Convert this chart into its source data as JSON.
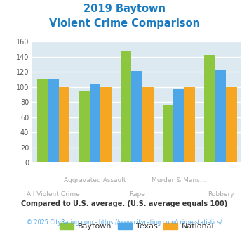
{
  "title_line1": "2019 Baytown",
  "title_line2": "Violent Crime Comparison",
  "title_color": "#1a7abf",
  "categories": [
    "All Violent Crime",
    "Aggravated Assault",
    "Rape",
    "Murder & Mans...",
    "Robbery"
  ],
  "baytown": [
    110,
    95,
    148,
    76,
    143
  ],
  "texas": [
    110,
    104,
    121,
    97,
    123
  ],
  "national": [
    100,
    100,
    100,
    100,
    100
  ],
  "baytown_color": "#8dc63f",
  "texas_color": "#4da6e8",
  "national_color": "#f5a623",
  "ylim": [
    0,
    160
  ],
  "yticks": [
    0,
    20,
    40,
    60,
    80,
    100,
    120,
    140,
    160
  ],
  "bg_color": "#dce9f0",
  "grid_color": "#ffffff",
  "legend_labels": [
    "Baytown",
    "Texas",
    "National"
  ],
  "footnote1": "Compared to U.S. average. (U.S. average equals 100)",
  "footnote2": "© 2025 CityRating.com - https://www.cityrating.com/crime-statistics/",
  "footnote1_color": "#333333",
  "footnote2_color": "#4da6e8",
  "xlabel_top": {
    "1": "Aggravated Assault",
    "3": "Murder & Mans..."
  },
  "xlabel_bot": {
    "0": "All Violent Crime",
    "2": "Rape",
    "4": "Robbery"
  },
  "xlabel_color": "#aaaaaa"
}
